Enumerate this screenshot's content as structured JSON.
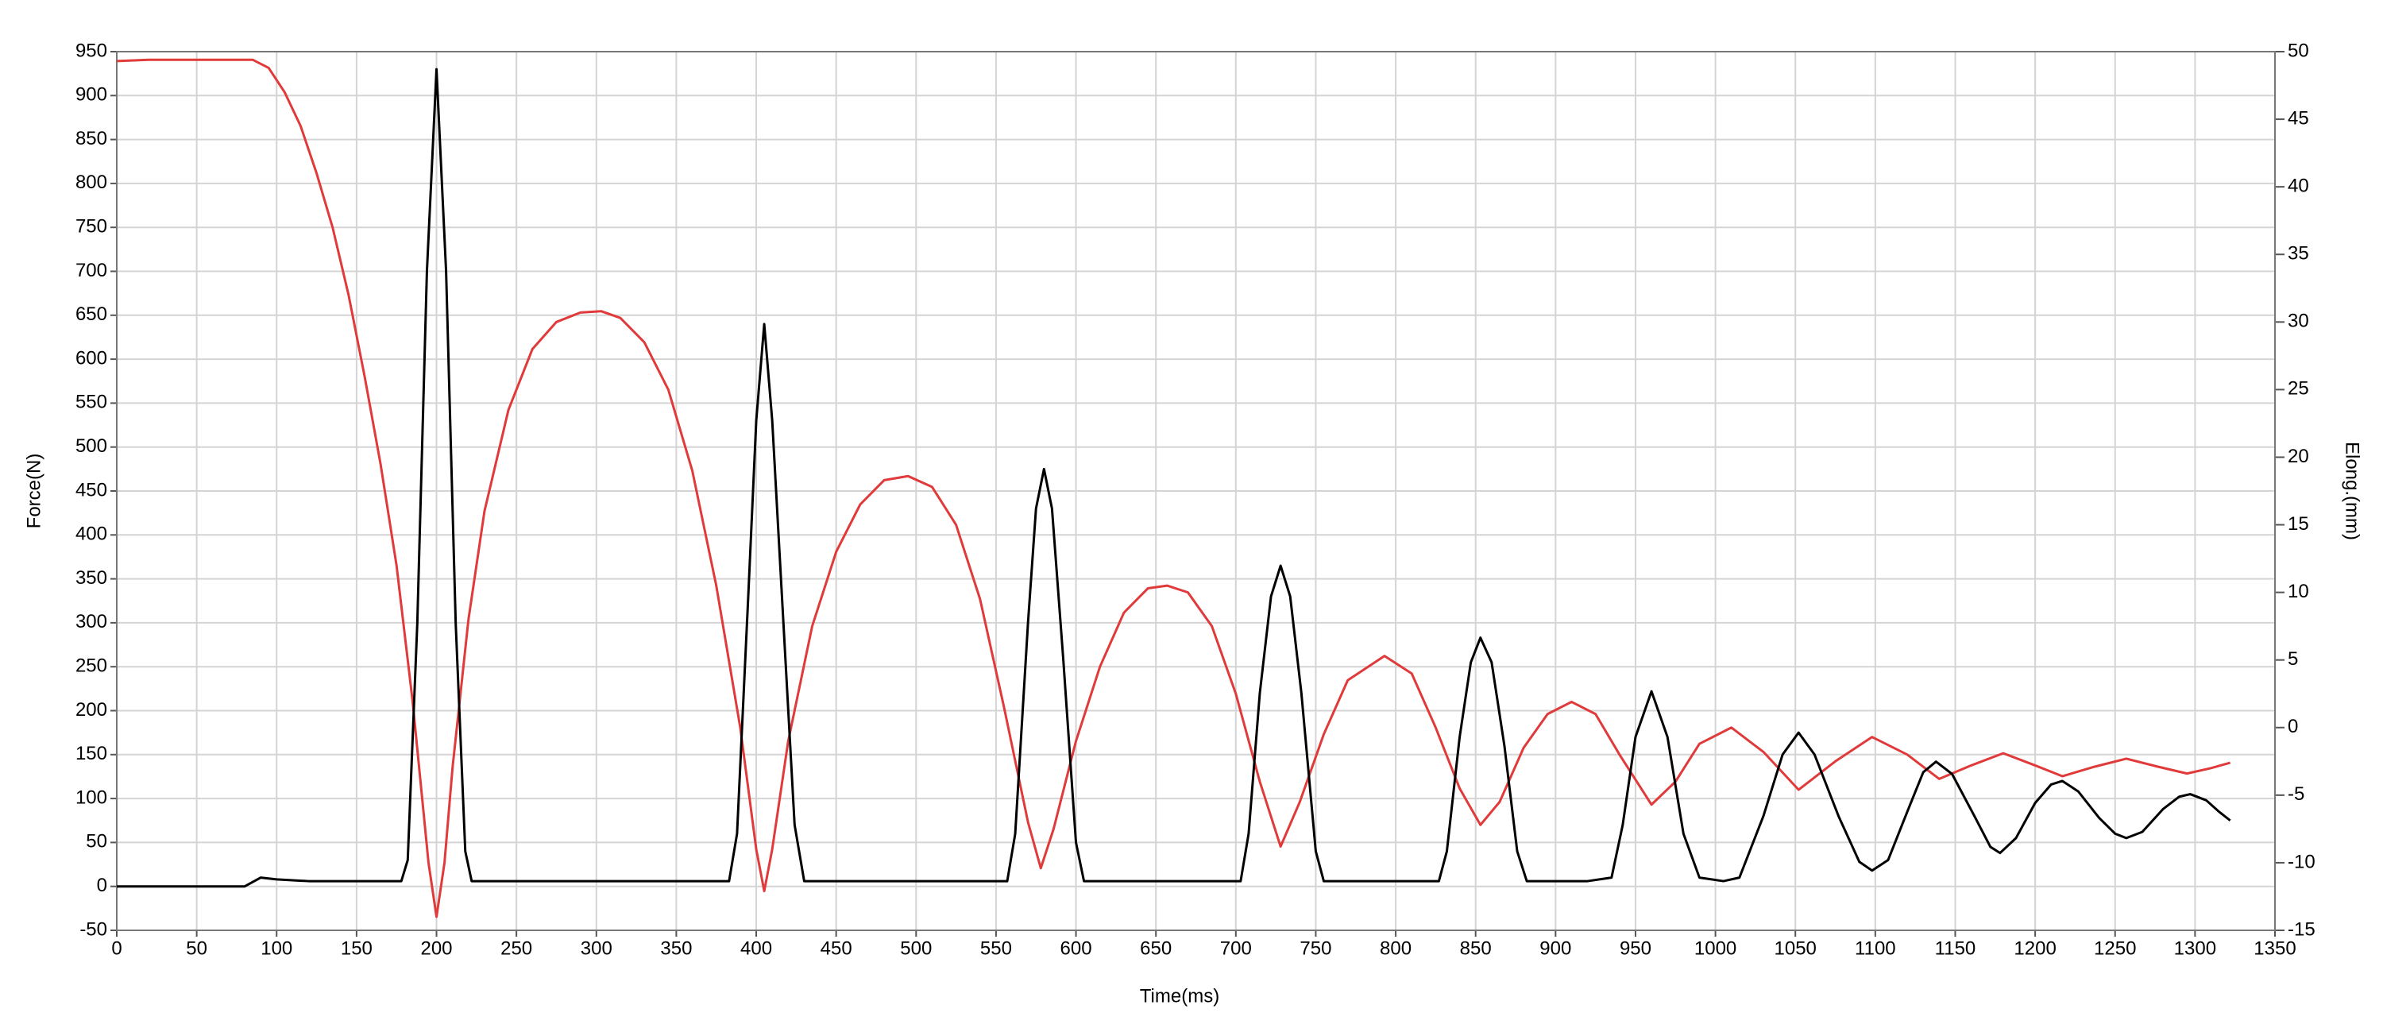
{
  "chart_data": {
    "type": "line",
    "x_label": "Time(ms)",
    "y_label": "Force(N)",
    "y2_label": "Elong.(mm)",
    "xlim": [
      0,
      1350
    ],
    "xticks": [
      0,
      50,
      100,
      150,
      200,
      250,
      300,
      350,
      400,
      450,
      500,
      550,
      600,
      650,
      700,
      750,
      800,
      850,
      900,
      950,
      1000,
      1050,
      1100,
      1150,
      1200,
      1250,
      1300,
      1350
    ],
    "ylim": [
      -50,
      950
    ],
    "yticks": [
      -50,
      0,
      50,
      100,
      150,
      200,
      250,
      300,
      350,
      400,
      450,
      500,
      550,
      600,
      650,
      700,
      750,
      800,
      850,
      900,
      950
    ],
    "y2lim": [
      -15,
      50
    ],
    "y2ticks": [
      -15,
      -10,
      -5,
      0,
      5,
      10,
      15,
      20,
      25,
      30,
      35,
      40,
      45,
      50
    ],
    "grid": true,
    "series": [
      {
        "color": "#000000",
        "x": [
          0,
          80,
          90,
          100,
          120,
          150,
          178,
          182,
          188,
          194,
          200,
          206,
          212,
          218,
          222,
          260,
          300,
          340,
          383,
          388,
          395,
          400,
          405,
          410,
          417,
          424,
          430,
          470,
          520,
          557,
          562,
          570,
          575,
          580,
          585,
          592,
          600,
          605,
          650,
          703,
          708,
          715,
          722,
          728,
          734,
          741,
          750,
          755,
          800,
          827,
          832,
          840,
          847,
          853,
          860,
          868,
          876,
          882,
          920,
          935,
          942,
          950,
          960,
          970,
          980,
          990,
          1005,
          1015,
          1030,
          1042,
          1052,
          1062,
          1077,
          1090,
          1098,
          1108,
          1120,
          1130,
          1138,
          1148,
          1162,
          1172,
          1178,
          1188,
          1200,
          1210,
          1217,
          1227,
          1240,
          1250,
          1257,
          1267,
          1280,
          1290,
          1297,
          1307,
          1315,
          1322
        ],
        "values": [
          0,
          0,
          10,
          8,
          6,
          6,
          6,
          30,
          300,
          700,
          930,
          700,
          300,
          40,
          6,
          6,
          6,
          6,
          6,
          60,
          330,
          530,
          640,
          530,
          300,
          70,
          6,
          6,
          6,
          6,
          60,
          300,
          430,
          475,
          430,
          260,
          50,
          6,
          6,
          6,
          60,
          220,
          330,
          365,
          330,
          220,
          40,
          6,
          6,
          6,
          40,
          170,
          255,
          283,
          255,
          160,
          40,
          6,
          6,
          10,
          70,
          170,
          222,
          170,
          60,
          10,
          6,
          10,
          80,
          150,
          175,
          150,
          80,
          28,
          18,
          30,
          85,
          130,
          142,
          128,
          80,
          45,
          38,
          55,
          95,
          116,
          120,
          108,
          78,
          60,
          55,
          62,
          88,
          102,
          105,
          98,
          85,
          75
        ]
      },
      {
        "color": "#e03a3a",
        "axis": "y2",
        "x": [
          0,
          20,
          40,
          60,
          85,
          95,
          105,
          115,
          125,
          135,
          145,
          155,
          165,
          175,
          185,
          190,
          195,
          200,
          205,
          210,
          220,
          230,
          245,
          260,
          275,
          290,
          303,
          315,
          330,
          345,
          360,
          375,
          390,
          400,
          405,
          410,
          420,
          435,
          450,
          465,
          480,
          495,
          510,
          525,
          540,
          555,
          570,
          578,
          586,
          600,
          615,
          630,
          645,
          657,
          670,
          685,
          700,
          715,
          728,
          740,
          755,
          770,
          793,
          810,
          825,
          840,
          853,
          865,
          880,
          895,
          910,
          925,
          940,
          960,
          975,
          990,
          1010,
          1030,
          1052,
          1075,
          1098,
          1120,
          1140,
          1160,
          1180,
          1200,
          1217,
          1237,
          1257,
          1277,
          1295,
          1310,
          1322
        ],
        "values": [
          49.3,
          49.4,
          49.4,
          49.4,
          49.4,
          48.8,
          47,
          44.5,
          41,
          37,
          32,
          26,
          19.5,
          12,
          2,
          -4,
          -10,
          -14,
          -10,
          -3,
          8,
          16,
          23.5,
          28,
          30,
          30.7,
          30.8,
          30.3,
          28.5,
          25,
          19,
          10.5,
          0,
          -9,
          -12.1,
          -9,
          -1,
          7.5,
          13,
          16.5,
          18.3,
          18.6,
          17.8,
          15,
          9.5,
          1.5,
          -7,
          -10.4,
          -7.5,
          -1,
          4.5,
          8.5,
          10.3,
          10.5,
          10,
          7.5,
          2.5,
          -4,
          -8.8,
          -5.5,
          -0.5,
          3.5,
          5.3,
          4,
          0,
          -4.5,
          -7.2,
          -5.5,
          -1.5,
          1,
          1.9,
          1,
          -2,
          -5.7,
          -4,
          -1.2,
          0,
          -1.8,
          -4.6,
          -2.5,
          -0.7,
          -2,
          -3.8,
          -2.8,
          -1.9,
          -2.8,
          -3.6,
          -2.9,
          -2.3,
          -2.9,
          -3.4,
          -3,
          -2.6
        ]
      }
    ]
  }
}
